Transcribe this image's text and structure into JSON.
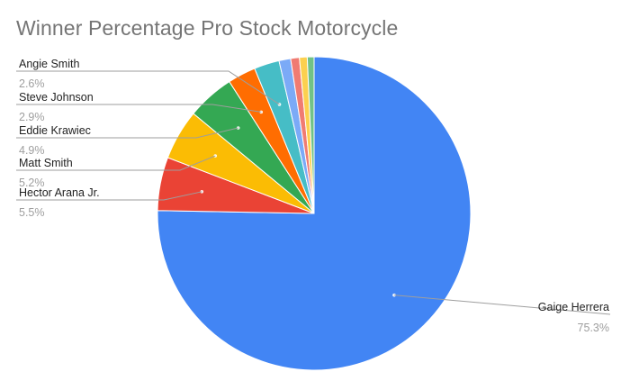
{
  "chart_data": {
    "type": "pie",
    "title": "Winner Percentage Pro Stock Motorcycle",
    "slices": [
      {
        "name": "Gaige Herrera",
        "value": 75.3,
        "label": "75.3%",
        "color": "#4285f4",
        "labeled": true
      },
      {
        "name": "Hector Arana Jr.",
        "value": 5.5,
        "label": "5.5%",
        "color": "#ea4335",
        "labeled": true
      },
      {
        "name": "Matt Smith",
        "value": 5.2,
        "label": "5.2%",
        "color": "#fbbc04",
        "labeled": true
      },
      {
        "name": "Eddie Krawiec",
        "value": 4.9,
        "label": "4.9%",
        "color": "#34a853",
        "labeled": true
      },
      {
        "name": "Steve Johnson",
        "value": 2.9,
        "label": "2.9%",
        "color": "#ff6d01",
        "labeled": true
      },
      {
        "name": "Angie Smith",
        "value": 2.6,
        "label": "2.6%",
        "color": "#46bdc6",
        "labeled": true
      },
      {
        "name": "",
        "value": 1.2,
        "label": "",
        "color": "#7baaf7",
        "labeled": false
      },
      {
        "name": "",
        "value": 0.9,
        "label": "",
        "color": "#f07b72",
        "labeled": false
      },
      {
        "name": "",
        "value": 0.8,
        "label": "",
        "color": "#fcd04f",
        "labeled": false
      },
      {
        "name": "",
        "value": 0.7,
        "label": "",
        "color": "#71c287",
        "labeled": false
      }
    ],
    "legend": "none",
    "label_style": "leader lines with name and percentage"
  }
}
